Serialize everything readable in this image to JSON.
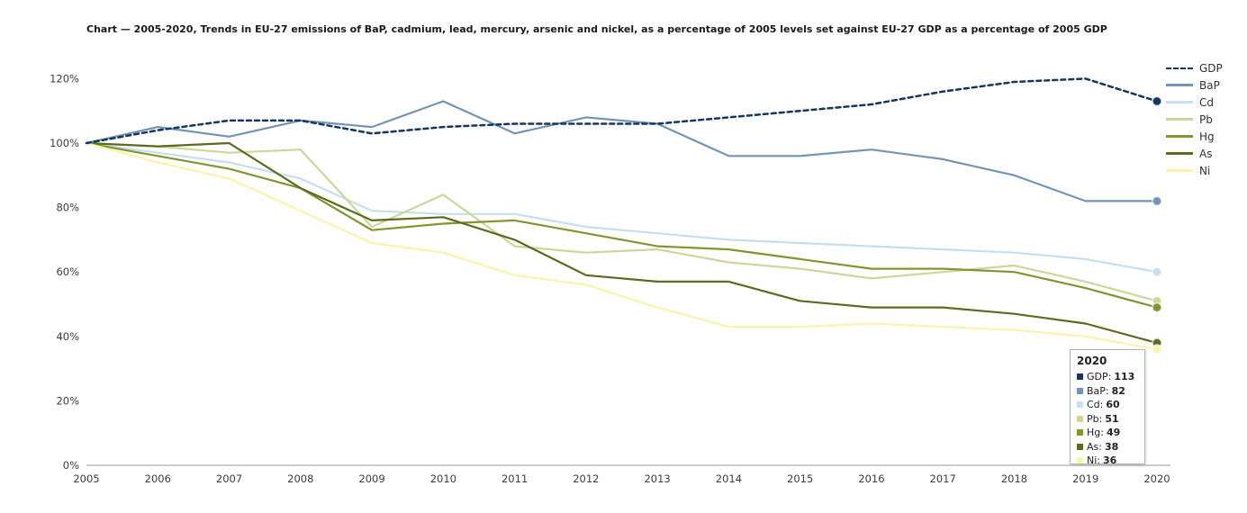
{
  "title": "Chart — 2005-2020, Trends in EU-27 emissions of BaP, cadmium, lead, mercury, arsenic and nickel, as a percentage of 2005 levels set against EU-27 GDP as a percentage of 2005 GDP",
  "chart_data": {
    "type": "line",
    "x": [
      2005,
      2006,
      2007,
      2008,
      2009,
      2010,
      2011,
      2012,
      2013,
      2014,
      2015,
      2016,
      2017,
      2018,
      2019,
      2020
    ],
    "series": [
      {
        "name": "GDP",
        "color": "#17375e",
        "dashed": true,
        "values": [
          100,
          104,
          107,
          107,
          103,
          105,
          106,
          106,
          106,
          108,
          110,
          112,
          116,
          119,
          120,
          113
        ]
      },
      {
        "name": "BaP",
        "color": "#7394b5",
        "dashed": false,
        "values": [
          100,
          105,
          102,
          107,
          105,
          113,
          103,
          108,
          106,
          96,
          96,
          98,
          95,
          90,
          82,
          82
        ]
      },
      {
        "name": "Cd",
        "color": "#c7deee",
        "dashed": false,
        "values": [
          100,
          97,
          94,
          89,
          79,
          78,
          78,
          74,
          72,
          70,
          69,
          68,
          67,
          66,
          64,
          60
        ]
      },
      {
        "name": "Pb",
        "color": "#c9d89b",
        "dashed": false,
        "values": [
          100,
          99,
          97,
          98,
          74,
          84,
          68,
          66,
          67,
          63,
          61,
          58,
          60,
          62,
          57,
          51
        ]
      },
      {
        "name": "Hg",
        "color": "#80972f",
        "dashed": false,
        "values": [
          100,
          96,
          92,
          86,
          73,
          75,
          76,
          72,
          68,
          67,
          64,
          61,
          61,
          60,
          55,
          49
        ]
      },
      {
        "name": "As",
        "color": "#5c6b20",
        "dashed": false,
        "values": [
          100,
          99,
          100,
          86,
          76,
          77,
          70,
          59,
          57,
          57,
          51,
          49,
          49,
          47,
          44,
          38
        ]
      },
      {
        "name": "Ni",
        "color": "#f8f4ab",
        "dashed": false,
        "values": [
          100,
          94,
          89,
          79,
          69,
          66,
          59,
          56,
          49,
          43,
          43,
          44,
          43,
          42,
          40,
          36
        ]
      }
    ],
    "ylim": [
      0,
      120
    ],
    "yticks": [
      0,
      20,
      40,
      60,
      80,
      100,
      120
    ],
    "ytick_suffix": "%",
    "grid": false,
    "legend_position": "right",
    "legend_labels": [
      "GDP",
      "BaP",
      "Cd",
      "Pb",
      "Hg",
      "As",
      "Ni"
    ]
  },
  "tooltip": {
    "year": "2020",
    "rows": [
      {
        "label": "GDP",
        "value": 113
      },
      {
        "label": "BaP",
        "value": 82
      },
      {
        "label": "Cd",
        "value": 60
      },
      {
        "label": "Pb",
        "value": 51
      },
      {
        "label": "Hg",
        "value": 49
      },
      {
        "label": "As",
        "value": 38
      },
      {
        "label": "Ni",
        "value": 36
      }
    ]
  }
}
